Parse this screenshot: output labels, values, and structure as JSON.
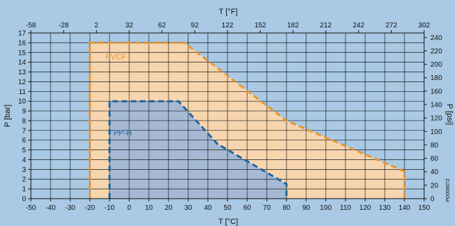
{
  "chart_data": {
    "type": "area",
    "x_bottom": {
      "label": "T [°C]",
      "range": [
        -50,
        150
      ],
      "ticks": [
        -50,
        -40,
        -30,
        -20,
        -10,
        0,
        10,
        20,
        30,
        40,
        50,
        60,
        70,
        80,
        90,
        100,
        110,
        120,
        130,
        140,
        150
      ]
    },
    "x_top": {
      "label": "T [°F]",
      "ticks": [
        -58,
        -28,
        2,
        32,
        62,
        92,
        122,
        152,
        182,
        212,
        242,
        272,
        302
      ]
    },
    "y_left": {
      "label": "P [bar]",
      "range": [
        0,
        17
      ],
      "ticks": [
        0,
        1,
        2,
        3,
        4,
        5,
        6,
        7,
        8,
        9,
        10,
        11,
        12,
        13,
        14,
        15,
        16,
        17
      ]
    },
    "y_right": {
      "label": "P [psi]",
      "ticks": [
        0,
        20,
        40,
        60,
        80,
        100,
        120,
        140,
        160,
        180,
        200,
        220,
        240
      ]
    },
    "grid": true,
    "series": [
      {
        "name": "PVCF",
        "fill_color": "#f7d5ae",
        "line_color": "#e8962f",
        "points": [
          [
            -20,
            0
          ],
          [
            -20,
            16
          ],
          [
            28,
            16
          ],
          [
            80,
            8
          ],
          [
            140,
            2.8
          ],
          [
            140,
            0
          ]
        ]
      },
      {
        "name": "PP-H",
        "fill_color": "#a6b9d4",
        "line_color": "#1f66a0",
        "points": [
          [
            -10,
            0
          ],
          [
            -10,
            10
          ],
          [
            25,
            10
          ],
          [
            45,
            5.6
          ],
          [
            80,
            1.5
          ],
          [
            80,
            0
          ]
        ]
      }
    ],
    "code": "PD00807Z"
  }
}
